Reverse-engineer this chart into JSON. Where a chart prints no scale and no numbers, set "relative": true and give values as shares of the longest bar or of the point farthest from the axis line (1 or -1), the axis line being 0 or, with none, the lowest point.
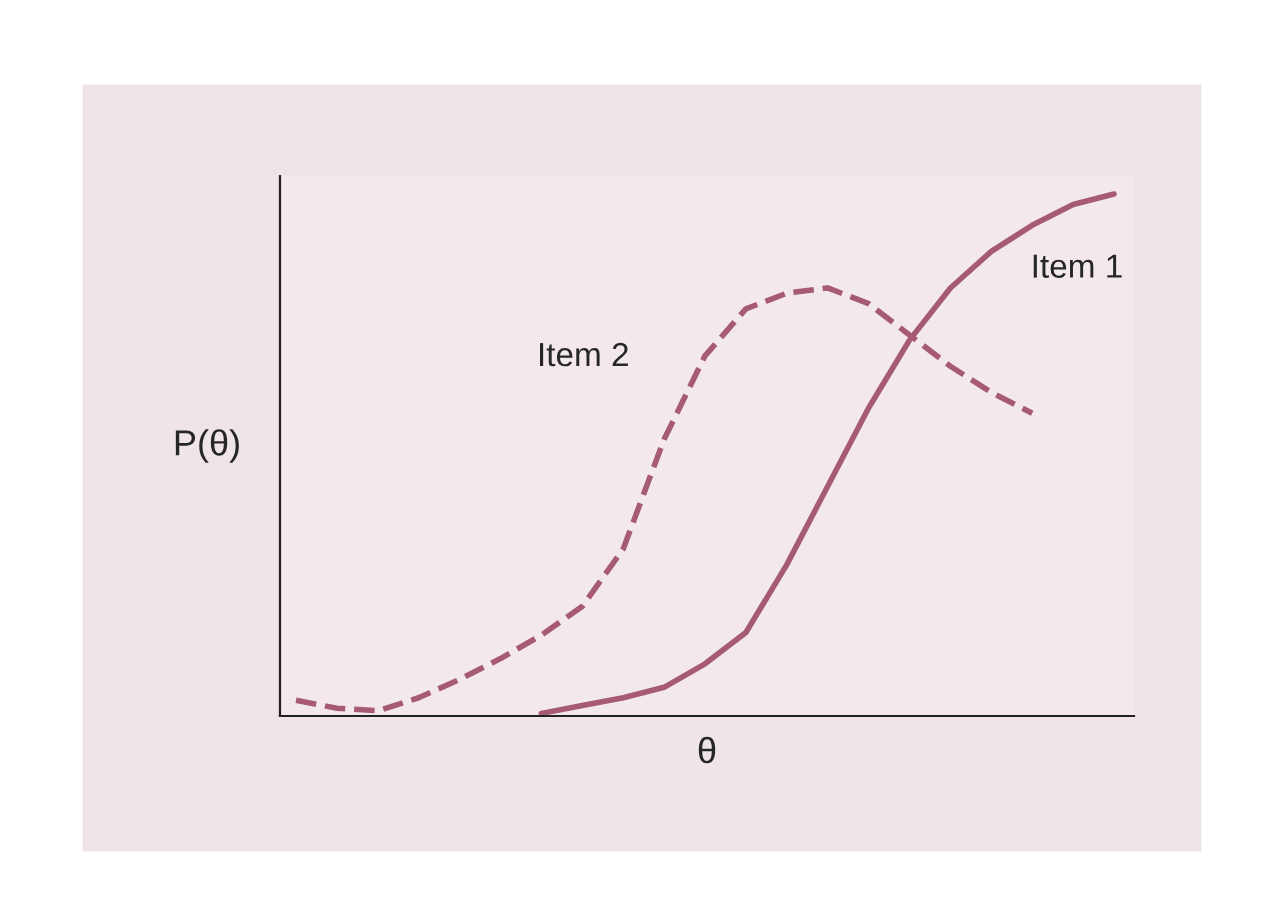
{
  "chart_data": {
    "type": "line",
    "relative": true,
    "xlabel": "θ",
    "ylabel": "P(θ)",
    "categories": [
      null,
      null,
      null,
      null,
      null,
      null,
      null,
      null,
      null,
      null,
      null,
      null,
      null,
      null,
      null,
      null,
      null,
      null,
      null,
      null,
      null
    ],
    "series": [
      {
        "name": "Item 1",
        "color": "#a65a75",
        "line_style": "solid",
        "values": [
          null,
          null,
          null,
          null,
          null,
          null,
          0.005,
          0.02,
          0.035,
          0.055,
          0.1,
          0.16,
          0.29,
          0.44,
          0.59,
          0.72,
          0.82,
          0.89,
          0.94,
          0.98,
          1
        ]
      },
      {
        "name": "Item 2",
        "color": "#a65a75",
        "line_style": "dashed",
        "values": [
          0.03,
          0.015,
          0.01,
          0.035,
          0.07,
          0.11,
          0.155,
          0.21,
          0.32,
          0.53,
          0.69,
          0.78,
          0.81,
          0.82,
          0.79,
          0.73,
          0.67,
          0.62,
          0.58,
          null,
          null
        ]
      }
    ]
  }
}
